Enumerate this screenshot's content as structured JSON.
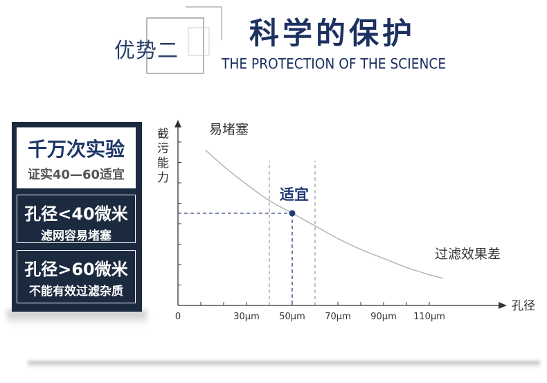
{
  "header": {
    "badge": "优势二",
    "title": "科学的保护",
    "subtitle": "THE PROTECTION OF THE SCIENCE"
  },
  "panel": {
    "box1": {
      "line1": "千万次实验",
      "line2": "证实40—60适宜"
    },
    "box2": {
      "line1": "孔径<40微米",
      "line2": "滤网容易堵塞"
    },
    "box3": {
      "line1": "孔径>60微米",
      "line2": "不能有效过滤杂质"
    }
  },
  "colors": {
    "navy": "#1c3160",
    "panel_bg": "#1c2a3f",
    "curve": "#b5b5b5",
    "dashed_navy": "#1f3a75",
    "dashed_gray": "#9a9a9a"
  },
  "chart_data": {
    "type": "line",
    "title": "",
    "xlabel": "孔径",
    "ylabel": "截污能力",
    "x_ticks": [
      "0",
      "30μm",
      "50μm",
      "70μm",
      "90μm",
      "110μm"
    ],
    "x_tick_values": [
      0,
      30,
      50,
      70,
      90,
      110
    ],
    "xlim": [
      0,
      140
    ],
    "ylim": [
      0,
      10
    ],
    "y_ticks_count": 8,
    "series": [
      {
        "x": [
          12,
          20,
          30,
          40,
          50,
          60,
          70,
          80,
          90,
          100,
          110,
          116
        ],
        "y": [
          8.6,
          7.7,
          6.7,
          5.8,
          5.1,
          4.4,
          3.7,
          3.1,
          2.6,
          2.1,
          1.7,
          1.5
        ]
      }
    ],
    "highlight": {
      "x": 50,
      "y": 5.1,
      "label": "适宜"
    },
    "range_lines_x": [
      40,
      60
    ],
    "annotations": {
      "top_left": "易堵塞",
      "bottom_right": "过滤效果差"
    }
  }
}
